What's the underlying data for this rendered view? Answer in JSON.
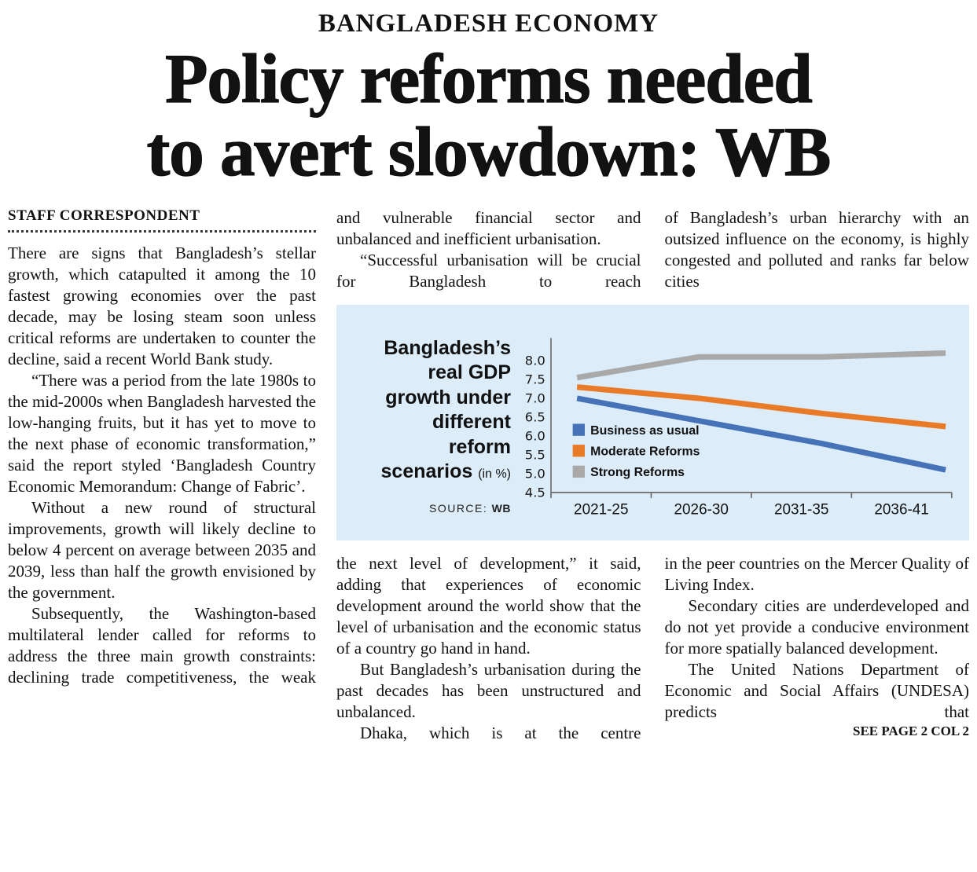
{
  "kicker": "BANGLADESH ECONOMY",
  "headline": "Policy reforms needed\nto avert slowdown: WB",
  "byline": "STAFF CORRESPONDENT",
  "see_more": "SEE PAGE 2 COL 2",
  "columns": {
    "col1": [
      "There are signs that Bangladesh’s stellar growth, which catapulted it among the 10 fastest growing economies over the past decade, may be losing steam soon unless critical reforms are undertaken to counter the decline, said a recent World Bank study.",
      "“There was a period from the late 1980s to the mid-2000s when Bangladesh harvested the low-hanging fruits, but it has yet to move to the next phase of economic transformation,” said the report styled ‘Bangladesh Country Economic Memorandum: Change of Fabric’.",
      "Without a new round of structural improvements, growth will likely decline to below 4 percent on average between 2035 and 2039, less than half the growth envisioned by the government.",
      "Subsequently, the Washington-based multilateral lender called for reforms to address the three main growth constraints: declining trade competitiveness, the weak"
    ],
    "col2_top": [
      "and vulnerable financial sector and unbalanced and inefficient urbanisation.",
      "“Successful urbanisation will be crucial for Bangladesh to reach"
    ],
    "col3_top": [
      "of Bangladesh’s urban hierarchy with an outsized influence on the economy, is highly congested and polluted and ranks far below cities"
    ],
    "col2_bottom": [
      "the next level of development,” it said, adding that experiences of economic development around the world show that the level of urbanisation and the economic status of a country go hand in hand.",
      "But Bangladesh’s urbanisation during the past decades has been unstructured and unbalanced.",
      "Dhaka, which is at the centre"
    ],
    "col3_bottom": [
      "in the peer countries on the Mercer Quality of Living Index.",
      "Secondary cities are underdeveloped and do not yet provide a conducive environment for more spatially balanced development.",
      "The United Nations Department of Economic and Social Affairs (UNDESA) predicts that"
    ]
  },
  "chart": {
    "title_main": "Bangladesh’s\nreal GDP\ngrowth under\ndifferent\nreform",
    "title_last": "scenarios",
    "title_unit": "(in %)",
    "source_label": "SOURCE:",
    "source_value": "WB",
    "background": "#dcecf8"
  },
  "chart_data": {
    "type": "line",
    "title": "Bangladesh’s real GDP growth under different reform scenarios (in %)",
    "categories": [
      "2021-25",
      "2026-30",
      "2031-35",
      "2036-41"
    ],
    "series": [
      {
        "name": "Business as usual",
        "color": "#4673b8",
        "values": [
          7.0,
          6.4,
          5.8,
          5.1
        ]
      },
      {
        "name": "Moderate Reforms",
        "color": "#e87a28",
        "values": [
          7.3,
          7.0,
          6.6,
          6.25
        ]
      },
      {
        "name": "Strong Reforms",
        "color": "#a9a9a9",
        "values": [
          7.55,
          8.1,
          8.1,
          8.2
        ]
      }
    ],
    "yticks": [
      4.5,
      5.0,
      5.5,
      6.0,
      6.5,
      7.0,
      7.5,
      8.0
    ],
    "ylim": [
      4.5,
      8.6
    ],
    "xlabel": "",
    "ylabel": "real GDP growth (in %)",
    "grid": false,
    "legend_position": "inside-left",
    "source": "WB"
  }
}
